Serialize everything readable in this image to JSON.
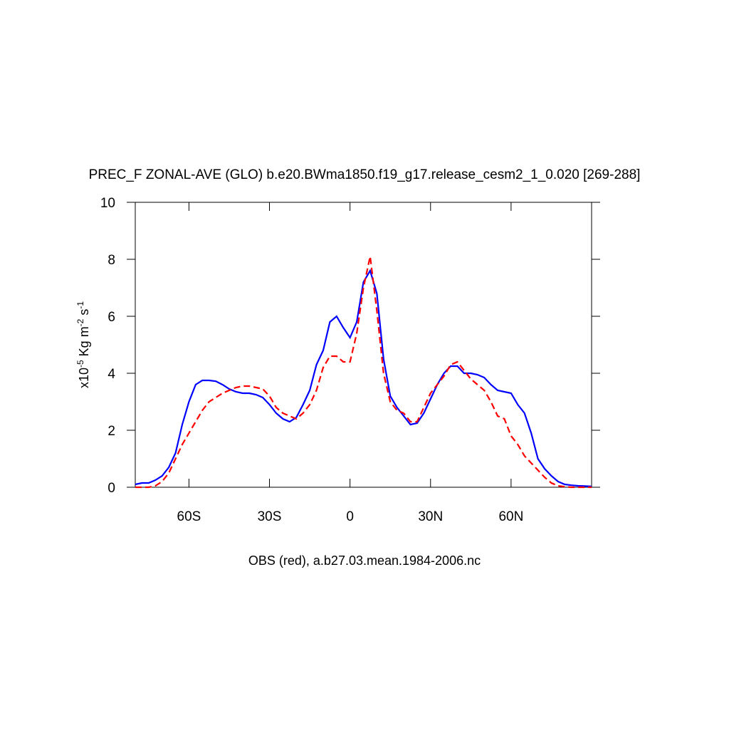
{
  "chart_data": {
    "type": "line",
    "title": "PREC_F ZONAL-AVE (GLO) b.e20.BWma1850.f19_g17.release_cesm2_1_0.020 [269-288]",
    "xlabel": "OBS (red), a.b27.03.mean.1984-2006.nc",
    "ylabel": [
      {
        "text": "x10",
        "sup": "-5"
      },
      {
        "text": "Kg m",
        "sup": "-2"
      },
      {
        "text": "s",
        "sup": "-1"
      }
    ],
    "xlim": [
      -80,
      90
    ],
    "ylim": [
      0,
      10
    ],
    "xticks": [
      {
        "value": -60,
        "label": "60S"
      },
      {
        "value": -30,
        "label": "30S"
      },
      0,
      {
        "value": 30,
        "label": "30N"
      },
      {
        "value": 60,
        "label": "60N"
      }
    ],
    "yticks": [
      0,
      2,
      4,
      6,
      8,
      10
    ],
    "x": [
      -80,
      -77.5,
      -75,
      -72.5,
      -70,
      -67.5,
      -65,
      -62.5,
      -60,
      -57.5,
      -55,
      -52.5,
      -50,
      -47.5,
      -45,
      -42.5,
      -40,
      -37.5,
      -35,
      -32.5,
      -30,
      -27.5,
      -25,
      -22.5,
      -20,
      -17.5,
      -15,
      -12.5,
      -10,
      -7.5,
      -5,
      -2.5,
      0,
      2.5,
      5,
      7.5,
      10,
      12.5,
      15,
      17.5,
      20,
      22.5,
      25,
      27.5,
      30,
      32.5,
      35,
      37.5,
      40,
      42.5,
      45,
      47.5,
      50,
      52.5,
      55,
      57.5,
      60,
      62.5,
      65,
      67.5,
      70,
      72.5,
      75,
      77.5,
      80,
      82.5,
      85,
      87.5,
      90
    ],
    "series": [
      {
        "color": "#0000ff",
        "line_style": "solid",
        "values": [
          0.1,
          0.15,
          0.15,
          0.25,
          0.4,
          0.7,
          1.2,
          2.2,
          3.0,
          3.6,
          3.75,
          3.75,
          3.72,
          3.6,
          3.45,
          3.35,
          3.3,
          3.3,
          3.25,
          3.15,
          2.9,
          2.6,
          2.4,
          2.3,
          2.45,
          2.9,
          3.4,
          4.3,
          4.8,
          5.8,
          6.0,
          5.6,
          5.25,
          5.8,
          7.2,
          7.6,
          6.8,
          4.5,
          3.2,
          2.8,
          2.5,
          2.2,
          2.25,
          2.6,
          3.1,
          3.6,
          4.0,
          4.25,
          4.25,
          4.0,
          4.0,
          3.95,
          3.85,
          3.6,
          3.4,
          3.35,
          3.3,
          2.9,
          2.6,
          1.9,
          1.0,
          0.65,
          0.4,
          0.2,
          0.1,
          0.07,
          0.05,
          0.04,
          0.03
        ]
      },
      {
        "color": "#ff0000",
        "line_style": "dashed",
        "values": [
          0,
          0,
          0,
          0.05,
          0.2,
          0.5,
          1.0,
          1.5,
          1.9,
          2.3,
          2.7,
          3.0,
          3.15,
          3.3,
          3.4,
          3.5,
          3.55,
          3.55,
          3.5,
          3.45,
          3.2,
          2.8,
          2.6,
          2.5,
          2.4,
          2.6,
          2.9,
          3.4,
          4.2,
          4.6,
          4.6,
          4.4,
          4.4,
          5.4,
          7.0,
          8.1,
          6.2,
          4.0,
          3.0,
          2.7,
          2.6,
          2.3,
          2.3,
          2.8,
          3.3,
          3.6,
          3.9,
          4.3,
          4.4,
          4.1,
          3.8,
          3.6,
          3.4,
          3.0,
          2.5,
          2.4,
          1.8,
          1.5,
          1.1,
          0.85,
          0.6,
          0.35,
          0.15,
          0.05,
          0.02,
          0,
          0,
          0,
          0
        ]
      }
    ]
  }
}
